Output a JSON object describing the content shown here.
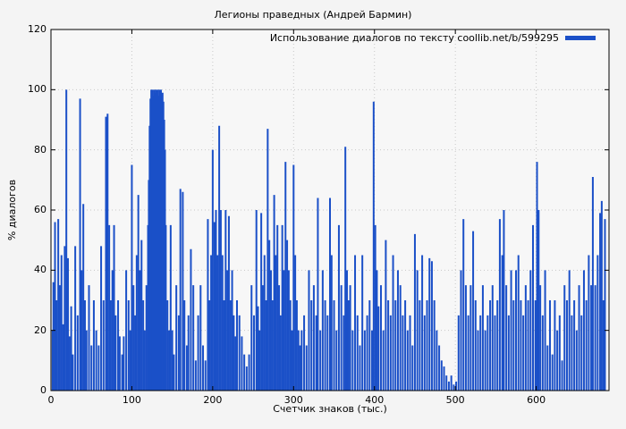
{
  "page": {
    "background": "#f4f4f4"
  },
  "chart_data": {
    "type": "bar",
    "title": "Легионы праведных (Андрей Бармин)",
    "legend": "Использование диалогов по тексту coollib.net/b/599295",
    "legend_position": "top-right-inside",
    "xlabel": "Счетчик знаков (тыс.)",
    "ylabel": "% диалогов",
    "xlim": [
      0,
      690
    ],
    "ylim": [
      0,
      120
    ],
    "xticks": [
      0,
      100,
      200,
      300,
      400,
      500,
      600
    ],
    "yticks": [
      0,
      20,
      40,
      60,
      80,
      100,
      120
    ],
    "grid": true,
    "bar_color": "#1b50c8",
    "grid_color": "#c8c8c8",
    "points": [
      [
        2,
        20
      ],
      [
        3,
        36
      ],
      [
        5,
        56
      ],
      [
        7,
        30
      ],
      [
        9,
        57
      ],
      [
        11,
        35
      ],
      [
        13,
        45
      ],
      [
        15,
        22
      ],
      [
        17,
        48
      ],
      [
        19,
        100
      ],
      [
        21,
        44
      ],
      [
        23,
        18
      ],
      [
        25,
        28
      ],
      [
        27,
        12
      ],
      [
        30,
        48
      ],
      [
        33,
        25
      ],
      [
        36,
        97
      ],
      [
        38,
        40
      ],
      [
        40,
        62
      ],
      [
        42,
        30
      ],
      [
        44,
        20
      ],
      [
        47,
        35
      ],
      [
        50,
        15
      ],
      [
        53,
        30
      ],
      [
        56,
        20
      ],
      [
        59,
        15
      ],
      [
        62,
        48
      ],
      [
        65,
        30
      ],
      [
        68,
        91
      ],
      [
        70,
        92
      ],
      [
        72,
        55
      ],
      [
        74,
        30
      ],
      [
        76,
        40
      ],
      [
        78,
        55
      ],
      [
        80,
        25
      ],
      [
        83,
        30
      ],
      [
        85,
        18
      ],
      [
        88,
        12
      ],
      [
        90,
        18
      ],
      [
        93,
        40
      ],
      [
        96,
        30
      ],
      [
        98,
        20
      ],
      [
        100,
        75
      ],
      [
        102,
        35
      ],
      [
        104,
        25
      ],
      [
        106,
        45
      ],
      [
        108,
        65
      ],
      [
        110,
        40
      ],
      [
        112,
        50
      ],
      [
        114,
        30
      ],
      [
        116,
        20
      ],
      [
        118,
        35
      ],
      [
        120,
        55
      ],
      [
        121,
        70
      ],
      [
        122,
        88
      ],
      [
        123,
        97
      ],
      [
        124,
        100
      ],
      [
        125,
        99
      ],
      [
        126,
        100
      ],
      [
        127,
        98
      ],
      [
        128,
        100
      ],
      [
        129,
        99
      ],
      [
        130,
        100
      ],
      [
        131,
        99
      ],
      [
        132,
        100
      ],
      [
        133,
        98
      ],
      [
        134,
        100
      ],
      [
        135,
        99
      ],
      [
        136,
        100
      ],
      [
        137,
        98
      ],
      [
        138,
        99
      ],
      [
        139,
        96
      ],
      [
        140,
        90
      ],
      [
        141,
        80
      ],
      [
        142,
        55
      ],
      [
        144,
        30
      ],
      [
        146,
        20
      ],
      [
        148,
        55
      ],
      [
        150,
        20
      ],
      [
        152,
        12
      ],
      [
        155,
        35
      ],
      [
        158,
        25
      ],
      [
        160,
        67
      ],
      [
        163,
        66
      ],
      [
        165,
        30
      ],
      [
        168,
        15
      ],
      [
        170,
        25
      ],
      [
        173,
        47
      ],
      [
        176,
        35
      ],
      [
        179,
        10
      ],
      [
        182,
        25
      ],
      [
        185,
        35
      ],
      [
        188,
        15
      ],
      [
        191,
        10
      ],
      [
        194,
        57
      ],
      [
        196,
        30
      ],
      [
        198,
        45
      ],
      [
        200,
        80
      ],
      [
        202,
        56
      ],
      [
        204,
        60
      ],
      [
        206,
        45
      ],
      [
        208,
        88
      ],
      [
        210,
        60
      ],
      [
        212,
        45
      ],
      [
        214,
        30
      ],
      [
        216,
        60
      ],
      [
        218,
        40
      ],
      [
        220,
        58
      ],
      [
        222,
        30
      ],
      [
        224,
        40
      ],
      [
        226,
        25
      ],
      [
        228,
        18
      ],
      [
        230,
        30
      ],
      [
        233,
        25
      ],
      [
        236,
        18
      ],
      [
        239,
        12
      ],
      [
        242,
        8
      ],
      [
        245,
        12
      ],
      [
        248,
        35
      ],
      [
        251,
        25
      ],
      [
        254,
        60
      ],
      [
        256,
        28
      ],
      [
        258,
        20
      ],
      [
        260,
        59
      ],
      [
        262,
        35
      ],
      [
        264,
        45
      ],
      [
        266,
        30
      ],
      [
        268,
        87
      ],
      [
        270,
        50
      ],
      [
        272,
        40
      ],
      [
        274,
        30
      ],
      [
        276,
        65
      ],
      [
        278,
        45
      ],
      [
        280,
        55
      ],
      [
        282,
        35
      ],
      [
        284,
        25
      ],
      [
        286,
        55
      ],
      [
        288,
        40
      ],
      [
        290,
        76
      ],
      [
        292,
        50
      ],
      [
        294,
        40
      ],
      [
        296,
        30
      ],
      [
        298,
        20
      ],
      [
        300,
        75
      ],
      [
        302,
        45
      ],
      [
        304,
        30
      ],
      [
        306,
        20
      ],
      [
        308,
        15
      ],
      [
        310,
        20
      ],
      [
        313,
        25
      ],
      [
        316,
        15
      ],
      [
        319,
        40
      ],
      [
        322,
        30
      ],
      [
        325,
        35
      ],
      [
        328,
        25
      ],
      [
        330,
        64
      ],
      [
        333,
        20
      ],
      [
        336,
        40
      ],
      [
        339,
        30
      ],
      [
        342,
        25
      ],
      [
        345,
        64
      ],
      [
        347,
        45
      ],
      [
        350,
        30
      ],
      [
        353,
        20
      ],
      [
        356,
        55
      ],
      [
        359,
        35
      ],
      [
        362,
        25
      ],
      [
        364,
        81
      ],
      [
        366,
        40
      ],
      [
        368,
        30
      ],
      [
        370,
        35
      ],
      [
        373,
        20
      ],
      [
        376,
        45
      ],
      [
        379,
        25
      ],
      [
        382,
        15
      ],
      [
        385,
        45
      ],
      [
        388,
        20
      ],
      [
        391,
        25
      ],
      [
        394,
        30
      ],
      [
        397,
        20
      ],
      [
        399,
        96
      ],
      [
        401,
        55
      ],
      [
        403,
        40
      ],
      [
        405,
        28
      ],
      [
        408,
        35
      ],
      [
        411,
        20
      ],
      [
        414,
        50
      ],
      [
        417,
        30
      ],
      [
        420,
        25
      ],
      [
        423,
        45
      ],
      [
        426,
        30
      ],
      [
        429,
        40
      ],
      [
        432,
        35
      ],
      [
        435,
        25
      ],
      [
        438,
        30
      ],
      [
        441,
        20
      ],
      [
        444,
        25
      ],
      [
        447,
        15
      ],
      [
        450,
        52
      ],
      [
        453,
        40
      ],
      [
        456,
        30
      ],
      [
        459,
        45
      ],
      [
        462,
        25
      ],
      [
        465,
        30
      ],
      [
        468,
        44
      ],
      [
        471,
        43
      ],
      [
        474,
        30
      ],
      [
        477,
        20
      ],
      [
        480,
        15
      ],
      [
        483,
        10
      ],
      [
        486,
        8
      ],
      [
        489,
        5
      ],
      [
        492,
        3
      ],
      [
        495,
        5
      ],
      [
        498,
        2
      ],
      [
        501,
        3
      ],
      [
        504,
        25
      ],
      [
        507,
        40
      ],
      [
        510,
        57
      ],
      [
        513,
        35
      ],
      [
        516,
        25
      ],
      [
        519,
        35
      ],
      [
        522,
        53
      ],
      [
        525,
        30
      ],
      [
        528,
        20
      ],
      [
        531,
        25
      ],
      [
        534,
        35
      ],
      [
        537,
        20
      ],
      [
        540,
        25
      ],
      [
        543,
        30
      ],
      [
        546,
        35
      ],
      [
        549,
        25
      ],
      [
        552,
        30
      ],
      [
        555,
        57
      ],
      [
        558,
        45
      ],
      [
        560,
        60
      ],
      [
        563,
        35
      ],
      [
        566,
        25
      ],
      [
        569,
        40
      ],
      [
        572,
        30
      ],
      [
        575,
        40
      ],
      [
        578,
        45
      ],
      [
        581,
        30
      ],
      [
        584,
        25
      ],
      [
        587,
        35
      ],
      [
        590,
        30
      ],
      [
        593,
        40
      ],
      [
        596,
        55
      ],
      [
        599,
        30
      ],
      [
        601,
        76
      ],
      [
        603,
        60
      ],
      [
        605,
        35
      ],
      [
        608,
        25
      ],
      [
        611,
        40
      ],
      [
        614,
        15
      ],
      [
        617,
        30
      ],
      [
        620,
        12
      ],
      [
        623,
        30
      ],
      [
        626,
        20
      ],
      [
        629,
        25
      ],
      [
        632,
        10
      ],
      [
        635,
        35
      ],
      [
        638,
        30
      ],
      [
        641,
        40
      ],
      [
        644,
        25
      ],
      [
        647,
        30
      ],
      [
        650,
        20
      ],
      [
        653,
        35
      ],
      [
        656,
        25
      ],
      [
        659,
        40
      ],
      [
        662,
        30
      ],
      [
        665,
        45
      ],
      [
        668,
        35
      ],
      [
        670,
        71
      ],
      [
        673,
        35
      ],
      [
        676,
        45
      ],
      [
        679,
        59
      ],
      [
        681,
        63
      ],
      [
        683,
        30
      ],
      [
        685,
        57
      ]
    ]
  }
}
